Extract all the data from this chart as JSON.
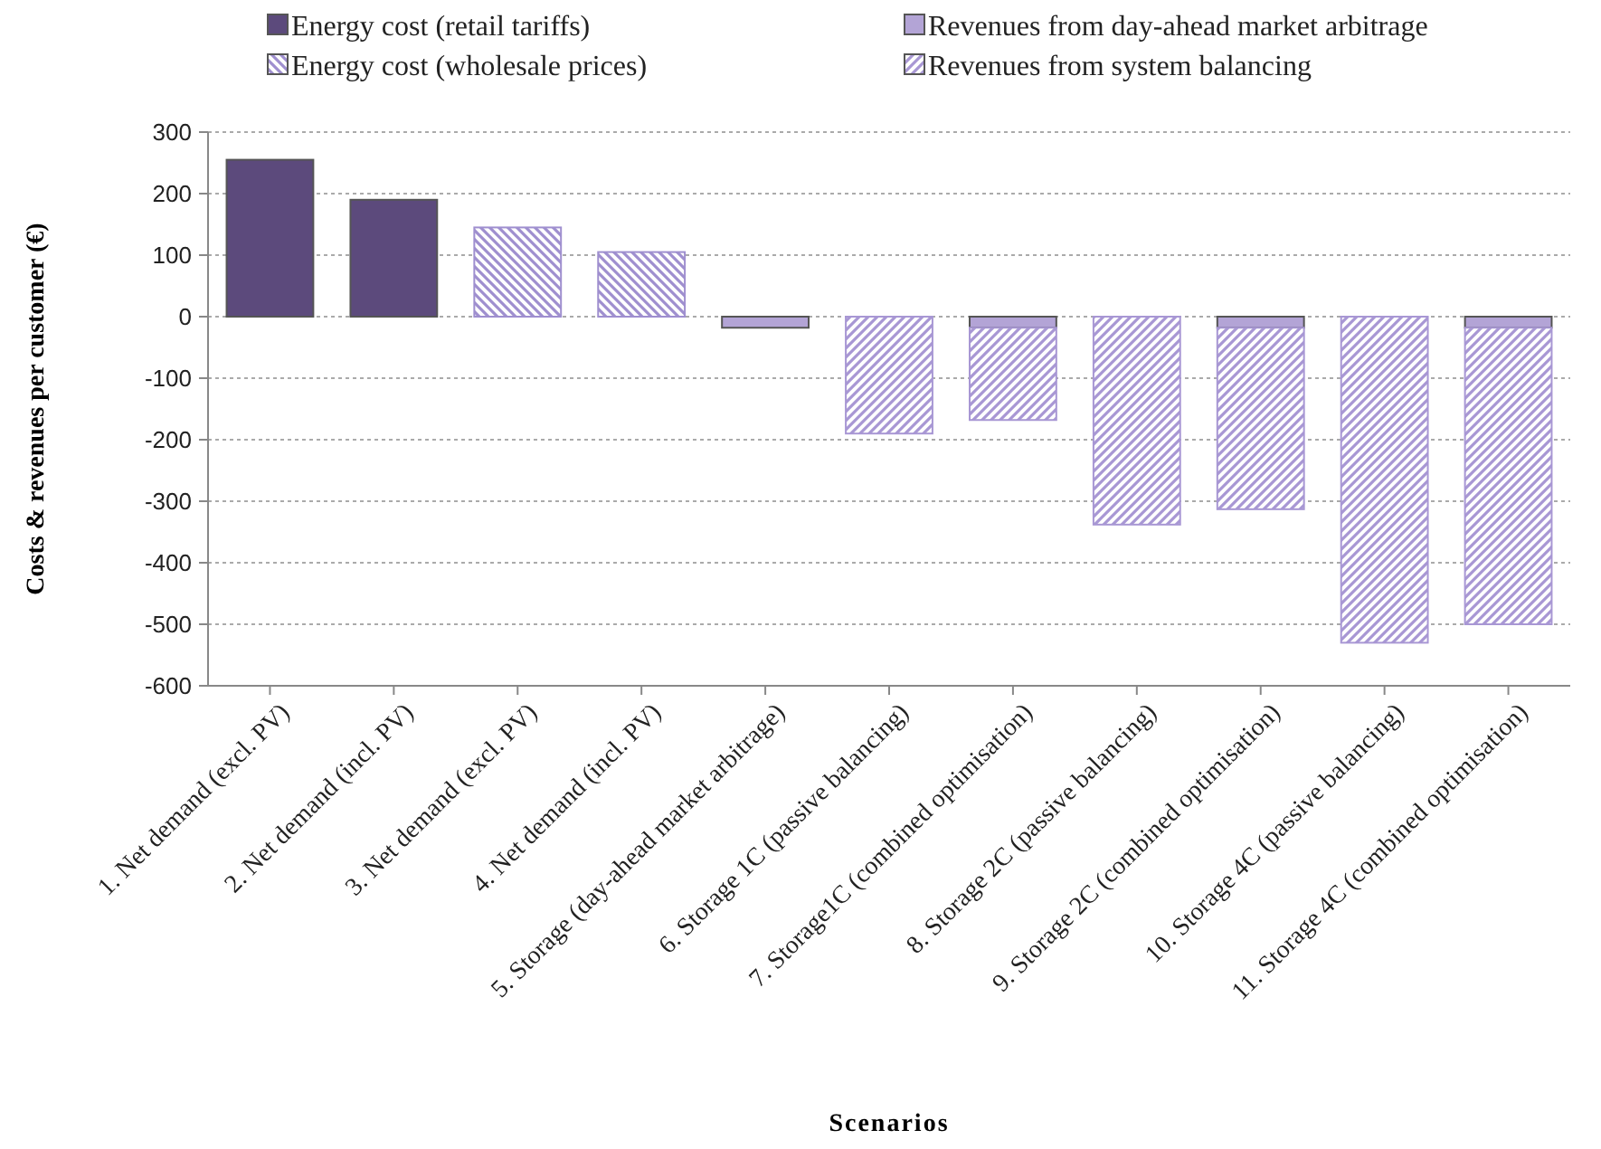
{
  "chart_data": {
    "type": "bar",
    "stacked": true,
    "xlabel": "Scenarios",
    "ylabel": "Costs & revenues per customer (€)",
    "categories": [
      "1. Net demand (excl. PV)",
      "2. Net demand (incl. PV)",
      "3. Net demand (excl. PV)",
      "4. Net demand (incl. PV)",
      "5. Storage (day-ahead market arbitrage)",
      "6. Storage 1C (passive balancing)",
      "7. Storage1C (combined optimisation)",
      "8. Storage 2C (passive balancing)",
      "9. Storage 2C (combined optimisation)",
      "10. Storage 4C (passive balancing)",
      "11. Storage 4C (combined optimisation)"
    ],
    "series": [
      {
        "name": "Energy cost (retail tariffs)",
        "color": "#5c4a7c",
        "values": [
          255,
          190,
          null,
          null,
          null,
          null,
          null,
          null,
          null,
          null,
          null
        ]
      },
      {
        "name": "Energy cost (wholesale prices)",
        "color": "#9f8fcf",
        "values": [
          null,
          null,
          145,
          105,
          null,
          null,
          null,
          null,
          null,
          null,
          null
        ]
      },
      {
        "name": "Revenues from day-ahead market arbitrage",
        "color": "#b3a4d6",
        "values": [
          null,
          null,
          null,
          null,
          -18,
          null,
          -18,
          null,
          -18,
          null,
          -18
        ]
      },
      {
        "name": "Revenues from system balancing",
        "color": "#a897d4",
        "values": [
          null,
          null,
          null,
          null,
          null,
          -190,
          -150,
          -338,
          -295,
          -530,
          -482
        ]
      }
    ],
    "ylim": [
      -600,
      300
    ],
    "yticks": [
      -600,
      -500,
      -400,
      -300,
      -200,
      -100,
      0,
      100,
      200,
      300
    ],
    "grid": "y",
    "legend": "top"
  }
}
